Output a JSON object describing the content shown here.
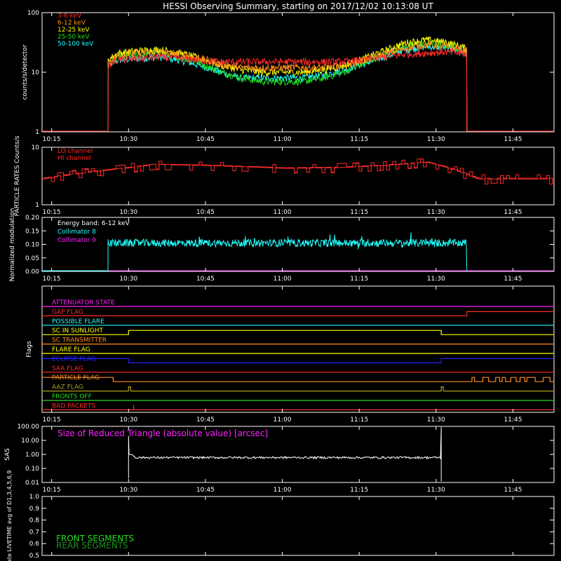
{
  "title": "HESSI Observing Summary, starting on 2017/12/02 10:13:08 UT",
  "time_ticks": [
    "10:15",
    "10:30",
    "10:45",
    "11:00",
    "11:15",
    "11:30",
    "11:45"
  ],
  "colors": {
    "bg": "#000000",
    "axis": "#ffffff",
    "red": "#ff2a2a",
    "orange": "#ff8c1a",
    "yellow": "#ffff00",
    "green": "#22dd22",
    "cyan": "#22ffff",
    "magenta": "#ff22ff",
    "blue": "#2222ff",
    "olive": "#b0a020",
    "pink": "#ff6080"
  },
  "chart_data": [
    {
      "type": "line",
      "panel": "count-rates",
      "title": "",
      "ylabel": "counts/s/detector",
      "yscale": "log",
      "ylim": [
        1,
        100
      ],
      "yticks": [
        "1",
        "10",
        "100"
      ],
      "xlim": [
        "10:13:08",
        "11:53"
      ],
      "data_start": "10:26",
      "data_end": "11:36",
      "x": [
        "10:26",
        "10:28",
        "10:32",
        "10:36",
        "10:40",
        "10:44",
        "10:48",
        "10:52",
        "10:56",
        "11:00",
        "11:04",
        "11:08",
        "11:12",
        "11:16",
        "11:20",
        "11:24",
        "11:28",
        "11:32",
        "11:36"
      ],
      "series": [
        {
          "name": "3-6 keV",
          "color": "#ff2a2a",
          "values": [
            13,
            16,
            17,
            18,
            17,
            16,
            15,
            15,
            15,
            15,
            15,
            15,
            15,
            16,
            18,
            20,
            21,
            22,
            20
          ]
        },
        {
          "name": "6-12 keV",
          "color": "#ff8c1a",
          "values": [
            15,
            19,
            21,
            22,
            20,
            17,
            14,
            12,
            12,
            12,
            12,
            12,
            13,
            16,
            20,
            25,
            29,
            27,
            23
          ]
        },
        {
          "name": "12-25 keV",
          "color": "#ffff00",
          "values": [
            16,
            21,
            23,
            24,
            21,
            17,
            13,
            11,
            10,
            10,
            10,
            11,
            13,
            17,
            23,
            31,
            35,
            32,
            25
          ]
        },
        {
          "name": "25-50 keV",
          "color": "#22dd22",
          "values": [
            14,
            18,
            20,
            21,
            18,
            14,
            10,
            8,
            7,
            7,
            7,
            8,
            10,
            14,
            20,
            27,
            31,
            29,
            23
          ]
        },
        {
          "name": "50-100 keV",
          "color": "#22ffff",
          "values": [
            13,
            16,
            17,
            18,
            16,
            13,
            10,
            8,
            8,
            8,
            8,
            9,
            11,
            14,
            18,
            24,
            27,
            26,
            21
          ]
        }
      ]
    },
    {
      "type": "line",
      "panel": "particle-rates",
      "ylabel": "PARTICLE RATES Counts/s",
      "yscale": "log",
      "ylim": [
        1,
        10
      ],
      "yticks": [
        "1",
        "10"
      ],
      "x": [
        "10:13",
        "10:30",
        "10:35",
        "10:45",
        "10:52",
        "11:00",
        "11:10",
        "11:20",
        "11:28",
        "11:36",
        "11:38",
        "11:53"
      ],
      "series": [
        {
          "name": "LO channel",
          "color": "#ff2a2a",
          "values": [
            2.9,
            4.5,
            5.1,
            4.9,
            4.7,
            4.4,
            4.5,
            4.9,
            5.6,
            3.4,
            2.9,
            2.9
          ]
        },
        {
          "name": "HI channel",
          "color": "#ff2a2a",
          "values": [
            2.8,
            4.4,
            5.0,
            4.8,
            4.6,
            4.3,
            4.4,
            4.8,
            5.5,
            3.3,
            2.8,
            2.8
          ]
        }
      ]
    },
    {
      "type": "line",
      "panel": "modulation",
      "ylabel": "Normalized modulation",
      "annotation": "Energy band: 6-12 keV",
      "ylim": [
        0,
        0.2
      ],
      "yticks": [
        "0.00",
        "0.05",
        "0.10",
        "0.15",
        "0.20"
      ],
      "data_start": "10:26",
      "data_end": "11:36",
      "series": [
        {
          "name": "Collimator 8",
          "color": "#22ffff",
          "mean": 0.105,
          "spread": 0.02
        },
        {
          "name": "Collimator 9",
          "color": "#ff22ff",
          "mean": 0.0,
          "spread": 0.0
        }
      ]
    },
    {
      "type": "line",
      "panel": "flags",
      "ylabel": "Flags",
      "flags": [
        {
          "name": "ATTENUATOR STATE",
          "color": "#ff22ff"
        },
        {
          "name": "GAP FLAG",
          "color": "#ff2a2a"
        },
        {
          "name": "POSSIBLE FLARE",
          "color": "#22ffff"
        },
        {
          "name": "SC IN SUNLIGHT",
          "color": "#ffff00"
        },
        {
          "name": "SC TRANSMITTER",
          "color": "#ff8c1a"
        },
        {
          "name": "FLARE FLAG",
          "color": "#ffff00"
        },
        {
          "name": "ECLIPSE FLAG",
          "color": "#2222ff"
        },
        {
          "name": "SAA FLAG",
          "color": "#ff2a2a"
        },
        {
          "name": "PARTICLE FLAG",
          "color": "#ff8c1a"
        },
        {
          "name": "AAZ FLAG",
          "color": "#b0a020"
        },
        {
          "name": "FRONTS OFF",
          "color": "#22dd22"
        },
        {
          "name": "BAD PACKETS",
          "color": "#ff2a2a"
        }
      ]
    },
    {
      "type": "line",
      "panel": "sas",
      "ylabel": "SAS",
      "annotation": "Size of Reduced Triangle (absolute value) [arcsec]",
      "yscale": "log",
      "ylim": [
        0.01,
        100
      ],
      "yticks": [
        "0.01",
        "0.10",
        "1.00",
        "10.00",
        "100.00"
      ],
      "data_start": "10:30",
      "data_end": "11:31",
      "series": [
        {
          "name": "",
          "color": "#ffffff",
          "level": 0.6
        }
      ]
    },
    {
      "type": "line",
      "panel": "livetime",
      "ylabel": "Mon. Rate LIVETIME avg of D1,3,4,5,6,9",
      "ylim": [
        0.5,
        1.0
      ],
      "yticks": [
        "0.5",
        "0.6",
        "0.7",
        "0.8",
        "0.9",
        "1.0"
      ],
      "series": [
        {
          "name": "FRONT SEGMENTS",
          "color": "#22dd22"
        },
        {
          "name": "REAR SEGMENTS",
          "color": "#1f8f1f"
        }
      ]
    }
  ]
}
